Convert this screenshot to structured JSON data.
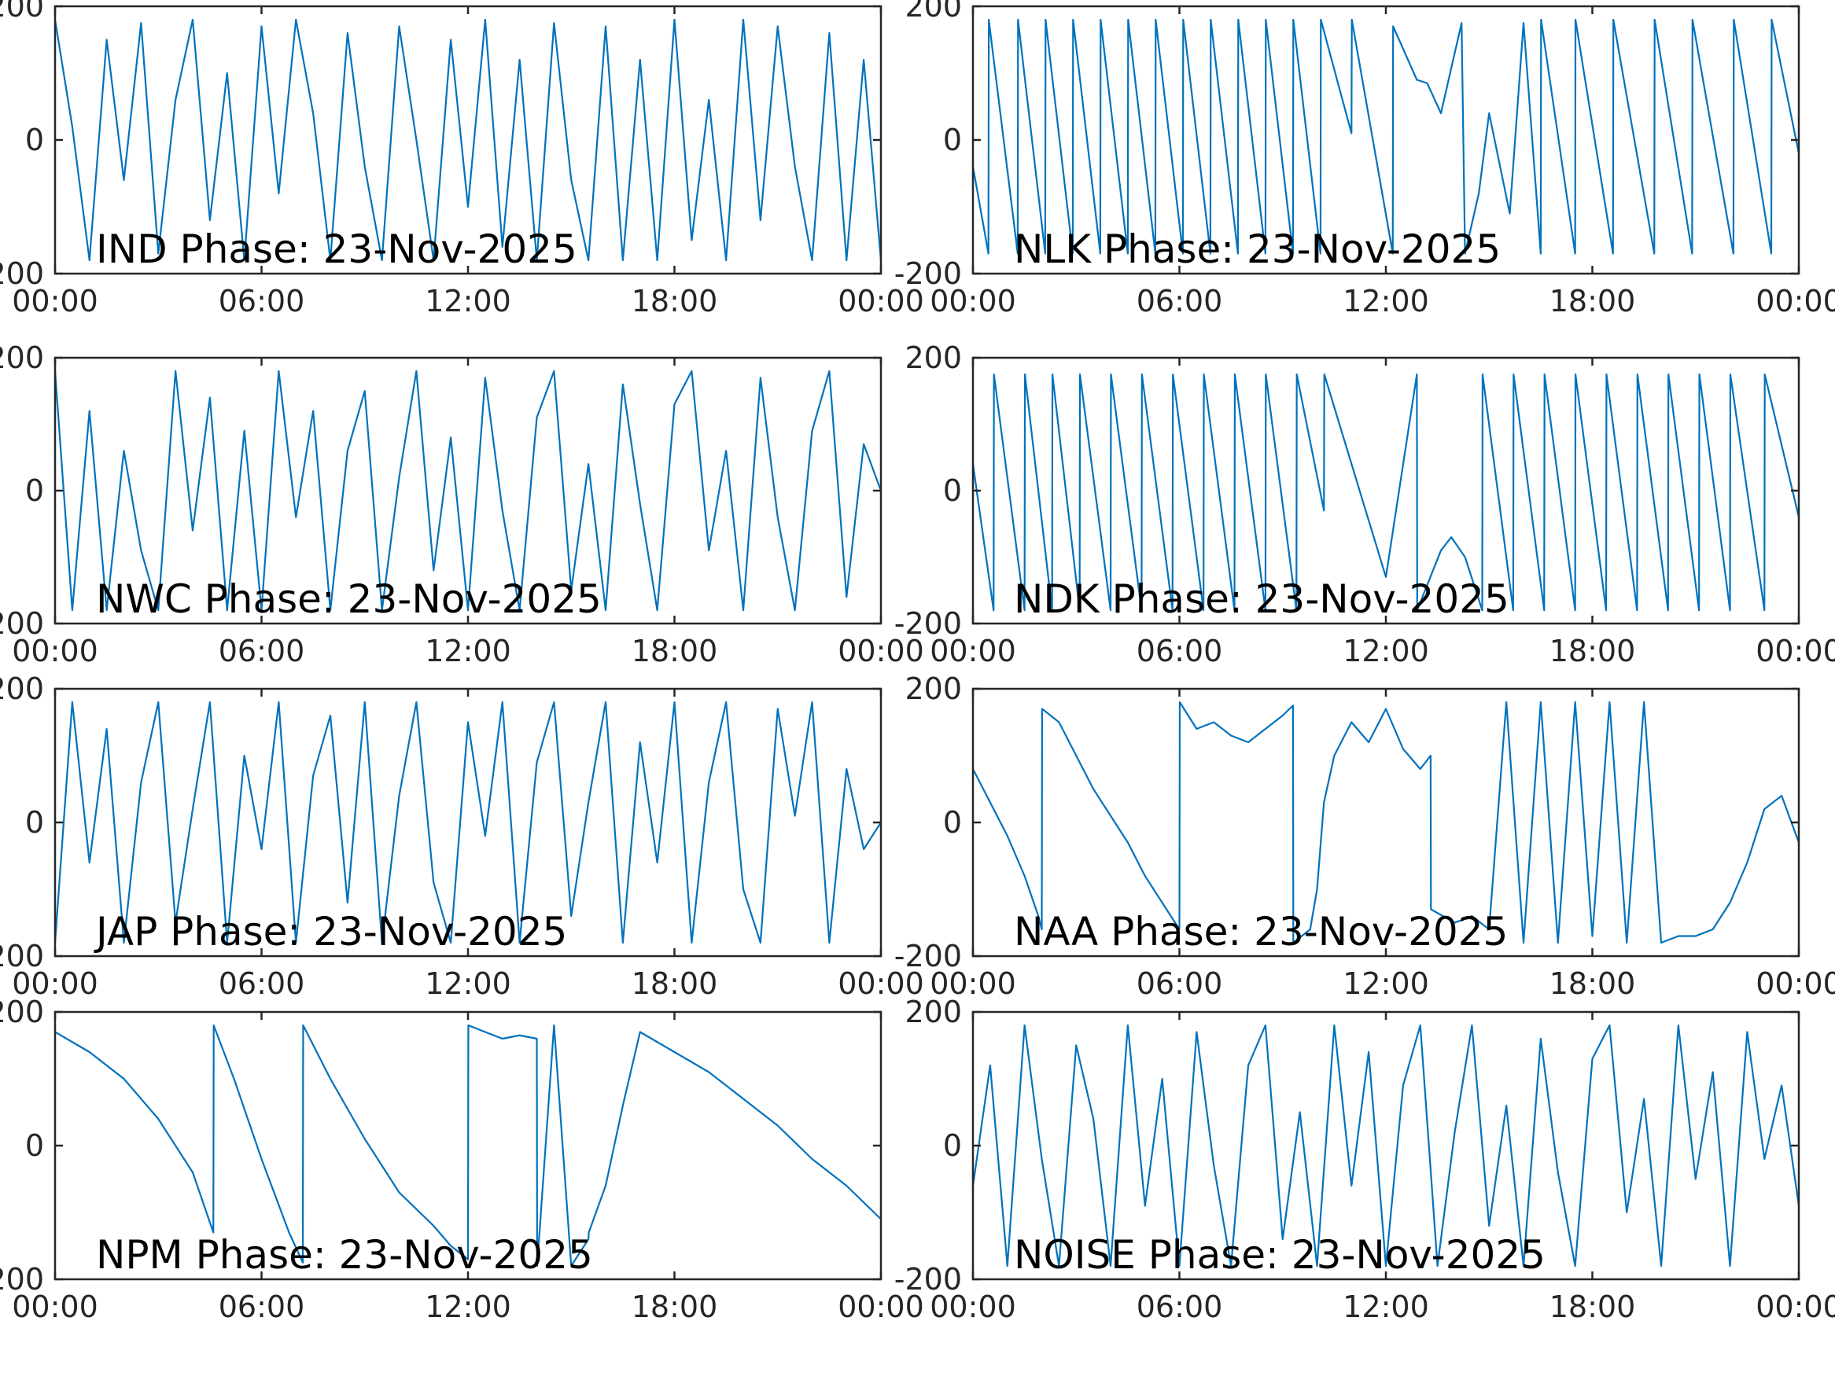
{
  "chart_data": [
    {
      "type": "line",
      "title": "IND Phase: 23-Nov-2025",
      "series_color": "#0072BD",
      "xlim": [
        "00:00",
        "24:00"
      ],
      "ylim": [
        -200,
        200
      ],
      "x_tick_labels": [
        "00:00",
        "06:00",
        "12:00",
        "18:00",
        "00:00"
      ],
      "y_tick_labels": [
        "-200",
        "0",
        "200"
      ],
      "x_hours": [
        0,
        0.5,
        1.0,
        1.5,
        2.0,
        2.5,
        3.0,
        3.5,
        4.0,
        4.5,
        5.0,
        5.5,
        6.0,
        6.5,
        7.0,
        7.5,
        8.0,
        8.5,
        9.0,
        9.5,
        10.0,
        10.5,
        11.0,
        11.5,
        12.0,
        12.5,
        13.0,
        13.5,
        14.0,
        14.5,
        15.0,
        15.5,
        16.0,
        16.5,
        17.0,
        17.5,
        18.0,
        18.5,
        19.0,
        19.5,
        20.0,
        20.5,
        21.0,
        21.5,
        22.0,
        22.5,
        23.0,
        23.5,
        24.0
      ],
      "y": [
        180,
        20,
        -180,
        150,
        -60,
        175,
        -170,
        60,
        180,
        -120,
        100,
        -180,
        170,
        -80,
        180,
        40,
        -180,
        160,
        -40,
        -180,
        170,
        0,
        -180,
        150,
        -100,
        180,
        -160,
        120,
        -180,
        175,
        -60,
        -180,
        170,
        -180,
        120,
        -180,
        180,
        -150,
        60,
        -180,
        180,
        -120,
        170,
        -40,
        -180,
        160,
        -180,
        120,
        -180
      ]
    },
    {
      "type": "line",
      "title": "NLK Phase: 23-Nov-2025",
      "series_color": "#0072BD",
      "xlim": [
        "00:00",
        "24:00"
      ],
      "ylim": [
        -200,
        200
      ],
      "x_tick_labels": [
        "00:00",
        "06:00",
        "12:00",
        "18:00",
        "00:00"
      ],
      "y_tick_labels": [
        "-200",
        "0",
        "200"
      ],
      "x_hours": [
        0,
        0.45,
        0.46,
        1.3,
        1.31,
        2.1,
        2.11,
        2.9,
        2.91,
        3.7,
        3.71,
        4.5,
        4.51,
        5.3,
        5.31,
        6.1,
        6.11,
        6.9,
        6.91,
        7.7,
        7.71,
        8.5,
        8.51,
        9.3,
        9.31,
        10.1,
        10.11,
        11.0,
        11.01,
        12.2,
        12.21,
        12.9,
        13.2,
        13.6,
        14.2,
        14.3,
        14.7,
        15.0,
        15.6,
        16.0,
        16.5,
        16.51,
        17.5,
        17.51,
        18.6,
        18.61,
        19.8,
        19.81,
        20.9,
        20.91,
        22.1,
        22.11,
        23.2,
        23.21,
        24.0
      ],
      "y": [
        -40,
        -170,
        180,
        -170,
        180,
        -170,
        180,
        -170,
        180,
        -170,
        180,
        -170,
        180,
        -170,
        180,
        -170,
        180,
        -170,
        180,
        -170,
        180,
        -170,
        180,
        -170,
        180,
        -170,
        180,
        10,
        180,
        -170,
        170,
        90,
        85,
        40,
        175,
        -170,
        -80,
        40,
        -110,
        175,
        -170,
        180,
        -170,
        180,
        -170,
        180,
        -170,
        180,
        -170,
        180,
        -170,
        180,
        -170,
        180,
        -20
      ]
    },
    {
      "type": "line",
      "title": "NWC Phase: 23-Nov-2025",
      "series_color": "#0072BD",
      "xlim": [
        "00:00",
        "24:00"
      ],
      "ylim": [
        -200,
        200
      ],
      "x_tick_labels": [
        "00:00",
        "06:00",
        "12:00",
        "18:00",
        "00:00"
      ],
      "y_tick_labels": [
        "-200",
        "0",
        "200"
      ],
      "x_hours": [
        0,
        0.5,
        1.0,
        1.5,
        2.0,
        2.5,
        3.0,
        3.5,
        4.0,
        4.5,
        5.0,
        5.5,
        6.0,
        6.5,
        7.0,
        7.5,
        8.0,
        8.5,
        9.0,
        9.5,
        10.0,
        10.5,
        11.0,
        11.5,
        12.0,
        12.5,
        13.0,
        13.5,
        14.0,
        14.5,
        15.0,
        15.5,
        16.0,
        16.5,
        17.0,
        17.5,
        18.0,
        18.5,
        19.0,
        19.5,
        20.0,
        20.5,
        21.0,
        21.5,
        22.0,
        22.5,
        23.0,
        23.5,
        24.0
      ],
      "y": [
        180,
        -180,
        120,
        -180,
        60,
        -90,
        -180,
        180,
        -60,
        140,
        -180,
        90,
        -180,
        180,
        -40,
        120,
        -180,
        60,
        150,
        -180,
        20,
        180,
        -120,
        80,
        -180,
        170,
        -30,
        -180,
        110,
        180,
        -150,
        40,
        -180,
        160,
        -20,
        -180,
        130,
        180,
        -90,
        60,
        -180,
        170,
        -40,
        -180,
        90,
        180,
        -160,
        70,
        0
      ]
    },
    {
      "type": "line",
      "title": "NDK Phase: 23-Nov-2025",
      "series_color": "#0072BD",
      "xlim": [
        "00:00",
        "24:00"
      ],
      "ylim": [
        -200,
        200
      ],
      "x_tick_labels": [
        "00:00",
        "06:00",
        "12:00",
        "18:00",
        "00:00"
      ],
      "y_tick_labels": [
        "-200",
        "0",
        "200"
      ],
      "x_hours": [
        0,
        0.6,
        0.61,
        1.5,
        1.51,
        2.3,
        2.31,
        3.1,
        3.11,
        4.0,
        4.01,
        4.9,
        4.91,
        5.8,
        5.81,
        6.7,
        6.71,
        7.6,
        7.61,
        8.5,
        8.51,
        9.4,
        9.41,
        10.2,
        10.21,
        12.0,
        12.9,
        12.91,
        13.6,
        13.9,
        14.3,
        14.8,
        14.81,
        15.7,
        15.71,
        16.6,
        16.61,
        17.5,
        17.51,
        18.4,
        18.41,
        19.3,
        19.31,
        20.2,
        20.21,
        21.1,
        21.11,
        22.0,
        22.01,
        23.0,
        23.01,
        24.0
      ],
      "y": [
        40,
        -180,
        175,
        -180,
        175,
        -180,
        175,
        -180,
        175,
        -180,
        175,
        -180,
        175,
        -180,
        175,
        -180,
        175,
        -180,
        175,
        -180,
        175,
        -180,
        175,
        -30,
        175,
        -130,
        175,
        -180,
        -90,
        -70,
        -100,
        -180,
        175,
        -180,
        175,
        -180,
        175,
        -180,
        175,
        -180,
        175,
        -180,
        175,
        -180,
        175,
        -180,
        175,
        -180,
        175,
        -180,
        175,
        -40
      ]
    },
    {
      "type": "line",
      "title": "JAP Phase: 23-Nov-2025",
      "series_color": "#0072BD",
      "xlim": [
        "00:00",
        "24:00"
      ],
      "ylim": [
        -200,
        200
      ],
      "x_tick_labels": [
        "00:00",
        "06:00",
        "12:00",
        "18:00",
        "00:00"
      ],
      "y_tick_labels": [
        "-200",
        "0",
        "200"
      ],
      "x_hours": [
        0,
        0.5,
        1.0,
        1.5,
        2.0,
        2.5,
        3.0,
        3.5,
        4.0,
        4.5,
        5.0,
        5.5,
        6.0,
        6.5,
        7.0,
        7.5,
        8.0,
        8.5,
        9.0,
        9.5,
        10.0,
        10.5,
        11.0,
        11.5,
        12.0,
        12.5,
        13.0,
        13.5,
        14.0,
        14.5,
        15.0,
        15.5,
        16.0,
        16.5,
        17.0,
        17.5,
        18.0,
        18.5,
        19.0,
        19.5,
        20.0,
        20.5,
        21.0,
        21.5,
        22.0,
        22.5,
        23.0,
        23.5,
        24.0
      ],
      "y": [
        -180,
        180,
        -60,
        140,
        -180,
        60,
        180,
        -150,
        20,
        180,
        -180,
        100,
        -40,
        180,
        -180,
        70,
        160,
        -120,
        180,
        -180,
        40,
        180,
        -90,
        -180,
        150,
        -20,
        180,
        -180,
        90,
        180,
        -140,
        30,
        180,
        -180,
        120,
        -60,
        180,
        -180,
        60,
        180,
        -100,
        -180,
        170,
        10,
        180,
        -180,
        80,
        -40,
        0
      ]
    },
    {
      "type": "line",
      "title": "NAA Phase: 23-Nov-2025",
      "series_color": "#0072BD",
      "xlim": [
        "00:00",
        "24:00"
      ],
      "ylim": [
        -200,
        200
      ],
      "x_tick_labels": [
        "00:00",
        "06:00",
        "12:00",
        "18:00",
        "00:00"
      ],
      "y_tick_labels": [
        "-200",
        "0",
        "200"
      ],
      "x_hours": [
        0,
        0.5,
        1.0,
        1.5,
        1.9,
        2.0,
        2.01,
        2.5,
        3.0,
        3.5,
        4.0,
        4.5,
        5.0,
        5.5,
        6.0,
        6.01,
        6.5,
        7.0,
        7.5,
        8.0,
        8.5,
        9.0,
        9.3,
        9.31,
        9.8,
        10.0,
        10.2,
        10.5,
        11.0,
        11.5,
        12.0,
        12.5,
        13.0,
        13.3,
        13.31,
        14.0,
        14.5,
        15.0,
        15.5,
        16.0,
        16.5,
        17.0,
        17.5,
        18.0,
        18.5,
        19.0,
        19.5,
        20.0,
        20.5,
        21.0,
        21.5,
        22.0,
        22.5,
        23.0,
        23.5,
        24.0
      ],
      "y": [
        80,
        30,
        -20,
        -80,
        -140,
        -160,
        170,
        150,
        100,
        50,
        10,
        -30,
        -80,
        -120,
        -160,
        180,
        140,
        150,
        130,
        120,
        140,
        160,
        175,
        -180,
        -160,
        -100,
        30,
        100,
        150,
        120,
        170,
        110,
        80,
        100,
        -130,
        -150,
        -140,
        -160,
        180,
        -180,
        180,
        -180,
        180,
        -170,
        180,
        -180,
        180,
        -180,
        -170,
        -170,
        -160,
        -120,
        -60,
        20,
        40,
        -30
      ]
    },
    {
      "type": "line",
      "title": "NPM Phase: 23-Nov-2025",
      "series_color": "#0072BD",
      "xlim": [
        "00:00",
        "24:00"
      ],
      "ylim": [
        -200,
        200
      ],
      "x_tick_labels": [
        "00:00",
        "06:00",
        "12:00",
        "18:00",
        "00:00"
      ],
      "y_tick_labels": [
        "-200",
        "0",
        "200"
      ],
      "x_hours": [
        0,
        1.0,
        2.0,
        3.0,
        4.0,
        4.6,
        4.61,
        5.2,
        6.0,
        6.8,
        7.2,
        7.21,
        8.0,
        9.0,
        10.0,
        11.0,
        11.5,
        12.0,
        12.01,
        12.5,
        13.0,
        13.5,
        14.0,
        14.01,
        14.5,
        15.0,
        15.5,
        15.51,
        16.0,
        16.5,
        17.0,
        18.0,
        19.0,
        20.0,
        21.0,
        22.0,
        23.0,
        24.0
      ],
      "y": [
        170,
        140,
        100,
        40,
        -40,
        -130,
        180,
        100,
        -20,
        -130,
        -175,
        180,
        100,
        10,
        -70,
        -120,
        -150,
        -170,
        180,
        170,
        160,
        165,
        160,
        -180,
        180,
        -180,
        -140,
        -130,
        -60,
        60,
        170,
        140,
        110,
        70,
        30,
        -20,
        -60,
        -110
      ]
    },
    {
      "type": "line",
      "title": "NOISE Phase: 23-Nov-2025",
      "series_color": "#0072BD",
      "xlim": [
        "00:00",
        "24:00"
      ],
      "ylim": [
        -200,
        200
      ],
      "x_tick_labels": [
        "00:00",
        "06:00",
        "12:00",
        "18:00",
        "00:00"
      ],
      "y_tick_labels": [
        "-200",
        "0",
        "200"
      ],
      "x_hours": [
        0,
        0.5,
        1.0,
        1.5,
        2.0,
        2.5,
        3.0,
        3.5,
        4.0,
        4.5,
        5.0,
        5.5,
        6.0,
        6.5,
        7.0,
        7.5,
        8.0,
        8.5,
        9.0,
        9.5,
        10.0,
        10.5,
        11.0,
        11.5,
        12.0,
        12.5,
        13.0,
        13.5,
        14.0,
        14.5,
        15.0,
        15.5,
        16.0,
        16.5,
        17.0,
        17.5,
        18.0,
        18.5,
        19.0,
        19.5,
        20.0,
        20.5,
        21.0,
        21.5,
        22.0,
        22.5,
        23.0,
        23.5,
        24.0
      ],
      "y": [
        -60,
        120,
        -180,
        180,
        -20,
        -180,
        150,
        40,
        -180,
        180,
        -90,
        100,
        -180,
        170,
        -30,
        -180,
        120,
        180,
        -140,
        50,
        -180,
        180,
        -60,
        140,
        -180,
        90,
        180,
        -180,
        20,
        180,
        -120,
        60,
        -180,
        160,
        -40,
        -180,
        130,
        180,
        -100,
        70,
        -180,
        180,
        -50,
        110,
        -180,
        170,
        -20,
        90,
        -90
      ]
    }
  ]
}
